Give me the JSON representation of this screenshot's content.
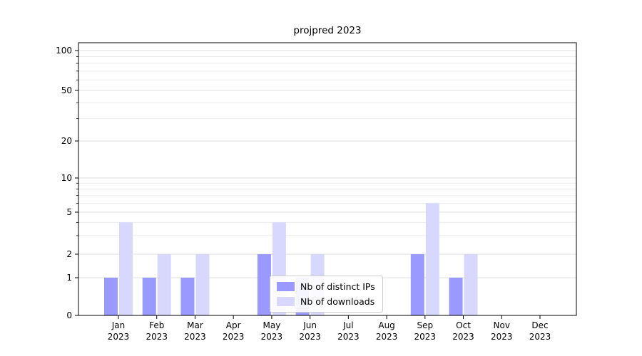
{
  "chart_data": {
    "type": "bar",
    "title": "projpred 2023",
    "categories": [
      "Jan 2023",
      "Feb 2023",
      "Mar 2023",
      "Apr 2023",
      "May 2023",
      "Jun 2023",
      "Jul 2023",
      "Aug 2023",
      "Sep 2023",
      "Oct 2023",
      "Nov 2023",
      "Dec 2023"
    ],
    "series": [
      {
        "name": "Nb of distinct IPs",
        "color": "#9999ff",
        "values": [
          1,
          1,
          1,
          0,
          2,
          1,
          0,
          0,
          2,
          1,
          0,
          0
        ]
      },
      {
        "name": "Nb of downloads",
        "color": "#d8d8ff",
        "values": [
          4,
          2,
          2,
          0,
          4,
          2,
          0,
          0,
          6,
          2,
          0,
          0
        ]
      }
    ],
    "yscale": "symlog",
    "y_ticks": [
      0,
      1,
      2,
      5,
      10,
      20,
      50,
      100
    ],
    "y_minor_ticks": [
      3,
      4,
      6,
      7,
      8,
      9,
      30,
      40,
      60,
      70,
      80,
      90
    ],
    "ylim": [
      0,
      130
    ],
    "grid": "horizontal",
    "legend_position": "lower center"
  }
}
